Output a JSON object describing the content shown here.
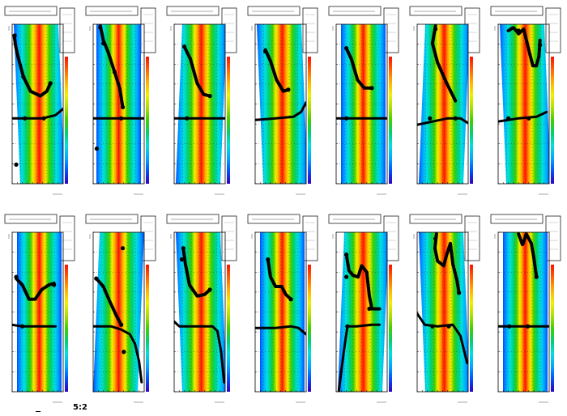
{
  "canvas": {
    "footer_text": "5:2"
  },
  "colors": {
    "background": "#ffffff",
    "frame": "#000000",
    "curve": "#000000",
    "palette": [
      "#2f00c0",
      "#0050ff",
      "#00a8ff",
      "#00e0e0",
      "#00d070",
      "#40d000",
      "#b0e000",
      "#f0f000",
      "#ffb000",
      "#ff6000",
      "#ff1000"
    ]
  },
  "chart_data": [
    {
      "type": "heatmap",
      "row": 1,
      "col": 1,
      "curve": [
        [
          0.04,
          0.93
        ],
        [
          0.07,
          0.86
        ],
        [
          0.12,
          0.79
        ],
        [
          0.22,
          0.67
        ],
        [
          0.36,
          0.58
        ],
        [
          0.55,
          0.55
        ],
        [
          0.68,
          0.58
        ],
        [
          0.75,
          0.63
        ]
      ],
      "baseline": [
        [
          0.0,
          0.41
        ],
        [
          0.3,
          0.41
        ],
        [
          0.6,
          0.41
        ],
        [
          0.85,
          0.43
        ],
        [
          1.0,
          0.47
        ]
      ],
      "markers": [
        [
          0.05,
          0.93
        ],
        [
          0.22,
          0.67
        ],
        [
          0.75,
          0.63
        ],
        [
          0.25,
          0.41
        ],
        [
          0.08,
          0.12
        ],
        [
          0.62,
          0.41
        ]
      ]
    },
    {
      "type": "heatmap",
      "row": 1,
      "col": 2,
      "curve": [
        [
          0.14,
          0.99
        ],
        [
          0.2,
          0.9
        ],
        [
          0.3,
          0.82
        ],
        [
          0.42,
          0.7
        ],
        [
          0.52,
          0.6
        ],
        [
          0.58,
          0.48
        ]
      ],
      "baseline": [
        [
          0.0,
          0.41
        ],
        [
          0.5,
          0.41
        ],
        [
          1.0,
          0.41
        ]
      ],
      "markers": [
        [
          0.14,
          0.98
        ],
        [
          0.2,
          0.88
        ],
        [
          0.07,
          0.22
        ],
        [
          0.42,
          0.7
        ],
        [
          0.58,
          0.48
        ],
        [
          0.55,
          0.41
        ]
      ]
    },
    {
      "type": "heatmap",
      "row": 1,
      "col": 3,
      "curve": [
        [
          0.2,
          0.86
        ],
        [
          0.32,
          0.78
        ],
        [
          0.45,
          0.63
        ],
        [
          0.58,
          0.56
        ],
        [
          0.7,
          0.55
        ]
      ],
      "baseline": [
        [
          0.0,
          0.41
        ],
        [
          0.5,
          0.41
        ],
        [
          1.0,
          0.41
        ]
      ],
      "markers": [
        [
          0.2,
          0.86
        ],
        [
          0.7,
          0.55
        ],
        [
          0.25,
          0.41
        ]
      ]
    },
    {
      "type": "heatmap",
      "row": 1,
      "col": 4,
      "curve": [
        [
          0.2,
          0.84
        ],
        [
          0.3,
          0.77
        ],
        [
          0.42,
          0.65
        ],
        [
          0.55,
          0.58
        ],
        [
          0.65,
          0.59
        ]
      ],
      "baseline": [
        [
          0.0,
          0.4
        ],
        [
          0.4,
          0.41
        ],
        [
          0.75,
          0.42
        ],
        [
          0.9,
          0.45
        ],
        [
          1.0,
          0.51
        ]
      ],
      "markers": [
        [
          0.2,
          0.83
        ],
        [
          0.65,
          0.59
        ]
      ]
    },
    {
      "type": "heatmap",
      "row": 1,
      "col": 5,
      "curve": [
        [
          0.2,
          0.85
        ],
        [
          0.3,
          0.78
        ],
        [
          0.42,
          0.65
        ],
        [
          0.55,
          0.6
        ],
        [
          0.7,
          0.6
        ]
      ],
      "baseline": [
        [
          0.0,
          0.41
        ],
        [
          0.5,
          0.41
        ],
        [
          1.0,
          0.41
        ]
      ],
      "markers": [
        [
          0.2,
          0.85
        ],
        [
          0.7,
          0.6
        ],
        [
          0.2,
          0.41
        ]
      ]
    },
    {
      "type": "heatmap",
      "row": 1,
      "col": 6,
      "curve": [
        [
          0.36,
          0.99
        ],
        [
          0.3,
          0.88
        ],
        [
          0.4,
          0.76
        ],
        [
          0.58,
          0.63
        ],
        [
          0.75,
          0.52
        ]
      ],
      "baseline": [
        [
          0.0,
          0.37
        ],
        [
          0.3,
          0.39
        ],
        [
          0.6,
          0.41
        ],
        [
          0.85,
          0.41
        ],
        [
          1.0,
          0.38
        ]
      ],
      "markers": [
        [
          0.36,
          0.97
        ],
        [
          0.25,
          0.41
        ],
        [
          0.75,
          0.41
        ]
      ]
    },
    {
      "type": "heatmap",
      "row": 1,
      "col": 7,
      "curve": [
        [
          0.2,
          0.96
        ],
        [
          0.3,
          0.98
        ],
        [
          0.4,
          0.94
        ],
        [
          0.5,
          0.97
        ],
        [
          0.6,
          0.84
        ],
        [
          0.68,
          0.74
        ],
        [
          0.75,
          0.74
        ],
        [
          0.8,
          0.8
        ],
        [
          0.82,
          0.9
        ]
      ],
      "baseline": [
        [
          0.0,
          0.39
        ],
        [
          0.4,
          0.41
        ],
        [
          0.75,
          0.42
        ],
        [
          0.95,
          0.45
        ]
      ],
      "markers": [
        [
          0.4,
          0.96
        ],
        [
          0.82,
          0.87
        ],
        [
          0.2,
          0.41
        ],
        [
          0.6,
          0.41
        ]
      ]
    },
    {
      "type": "heatmap",
      "row": 2,
      "col": 1,
      "curve": [
        [
          0.08,
          0.71
        ],
        [
          0.2,
          0.67
        ],
        [
          0.33,
          0.58
        ],
        [
          0.45,
          0.58
        ],
        [
          0.58,
          0.64
        ],
        [
          0.72,
          0.67
        ],
        [
          0.82,
          0.68
        ]
      ],
      "baseline": [
        [
          0.0,
          0.42
        ],
        [
          0.2,
          0.41
        ],
        [
          0.5,
          0.41
        ],
        [
          0.85,
          0.41
        ]
      ],
      "markers": [
        [
          0.08,
          0.72
        ],
        [
          0.82,
          0.67
        ],
        [
          0.2,
          0.41
        ]
      ]
    },
    {
      "type": "heatmap",
      "row": 2,
      "col": 2,
      "curve": [
        [
          0.06,
          0.71
        ],
        [
          0.2,
          0.66
        ],
        [
          0.32,
          0.57
        ],
        [
          0.45,
          0.48
        ],
        [
          0.55,
          0.42
        ]
      ],
      "baseline": [
        [
          0.0,
          0.41
        ],
        [
          0.35,
          0.41
        ],
        [
          0.55,
          0.39
        ],
        [
          0.72,
          0.36
        ],
        [
          0.82,
          0.3
        ],
        [
          0.9,
          0.19
        ],
        [
          0.95,
          0.06
        ]
      ],
      "markers": [
        [
          0.06,
          0.71
        ],
        [
          0.55,
          0.42
        ],
        [
          0.6,
          0.25
        ],
        [
          0.58,
          0.9
        ]
      ]
    },
    {
      "type": "heatmap",
      "row": 2,
      "col": 3,
      "curve": [
        [
          0.18,
          0.9
        ],
        [
          0.22,
          0.8
        ],
        [
          0.3,
          0.67
        ],
        [
          0.45,
          0.6
        ],
        [
          0.6,
          0.61
        ],
        [
          0.7,
          0.64
        ]
      ],
      "baseline": [
        [
          0.0,
          0.44
        ],
        [
          0.1,
          0.41
        ],
        [
          0.5,
          0.41
        ],
        [
          0.75,
          0.41
        ],
        [
          0.85,
          0.38
        ],
        [
          0.92,
          0.25
        ],
        [
          0.98,
          0.06
        ]
      ],
      "markers": [
        [
          0.18,
          0.9
        ],
        [
          0.15,
          0.83
        ],
        [
          0.7,
          0.64
        ]
      ]
    },
    {
      "type": "heatmap",
      "row": 2,
      "col": 4,
      "curve": [
        [
          0.25,
          0.83
        ],
        [
          0.3,
          0.72
        ],
        [
          0.4,
          0.66
        ],
        [
          0.52,
          0.66
        ],
        [
          0.6,
          0.61
        ],
        [
          0.7,
          0.58
        ]
      ],
      "baseline": [
        [
          0.0,
          0.4
        ],
        [
          0.4,
          0.4
        ],
        [
          0.7,
          0.41
        ],
        [
          0.85,
          0.4
        ],
        [
          1.0,
          0.36
        ]
      ],
      "markers": [
        [
          0.25,
          0.83
        ],
        [
          0.7,
          0.58
        ]
      ]
    },
    {
      "type": "heatmap",
      "row": 2,
      "col": 5,
      "curve": [
        [
          0.2,
          0.86
        ],
        [
          0.25,
          0.76
        ],
        [
          0.33,
          0.73
        ],
        [
          0.43,
          0.72
        ],
        [
          0.5,
          0.79
        ],
        [
          0.6,
          0.75
        ],
        [
          0.65,
          0.6
        ],
        [
          0.7,
          0.52
        ],
        [
          0.85,
          0.52
        ]
      ],
      "baseline": [
        [
          0.05,
          0.0
        ],
        [
          0.15,
          0.25
        ],
        [
          0.22,
          0.41
        ],
        [
          0.4,
          0.41
        ],
        [
          0.7,
          0.42
        ],
        [
          0.85,
          0.42
        ]
      ],
      "markers": [
        [
          0.2,
          0.86
        ],
        [
          0.2,
          0.72
        ],
        [
          0.65,
          0.52
        ],
        [
          0.22,
          0.41
        ]
      ]
    },
    {
      "type": "heatmap",
      "row": 2,
      "col": 6,
      "curve": [
        [
          0.38,
          0.99
        ],
        [
          0.35,
          0.9
        ],
        [
          0.4,
          0.82
        ],
        [
          0.52,
          0.79
        ],
        [
          0.58,
          0.86
        ],
        [
          0.65,
          0.93
        ],
        [
          0.7,
          0.8
        ],
        [
          0.78,
          0.7
        ],
        [
          0.82,
          0.62
        ]
      ],
      "baseline": [
        [
          0.0,
          0.49
        ],
        [
          0.15,
          0.42
        ],
        [
          0.4,
          0.41
        ],
        [
          0.7,
          0.42
        ],
        [
          0.85,
          0.35
        ],
        [
          0.98,
          0.18
        ]
      ],
      "markers": [
        [
          0.36,
          0.96
        ],
        [
          0.82,
          0.62
        ],
        [
          0.3,
          0.41
        ],
        [
          0.62,
          0.41
        ]
      ]
    },
    {
      "type": "heatmap",
      "row": 2,
      "col": 7,
      "curve": [
        [
          0.4,
          0.99
        ],
        [
          0.48,
          0.92
        ],
        [
          0.55,
          0.99
        ],
        [
          0.65,
          0.93
        ],
        [
          0.7,
          0.84
        ],
        [
          0.75,
          0.72
        ]
      ],
      "baseline": [
        [
          0.0,
          0.41
        ],
        [
          0.5,
          0.41
        ],
        [
          0.85,
          0.41
        ],
        [
          1.0,
          0.41
        ]
      ],
      "markers": [
        [
          0.22,
          0.41
        ],
        [
          0.58,
          0.41
        ],
        [
          0.75,
          0.72
        ]
      ]
    }
  ]
}
